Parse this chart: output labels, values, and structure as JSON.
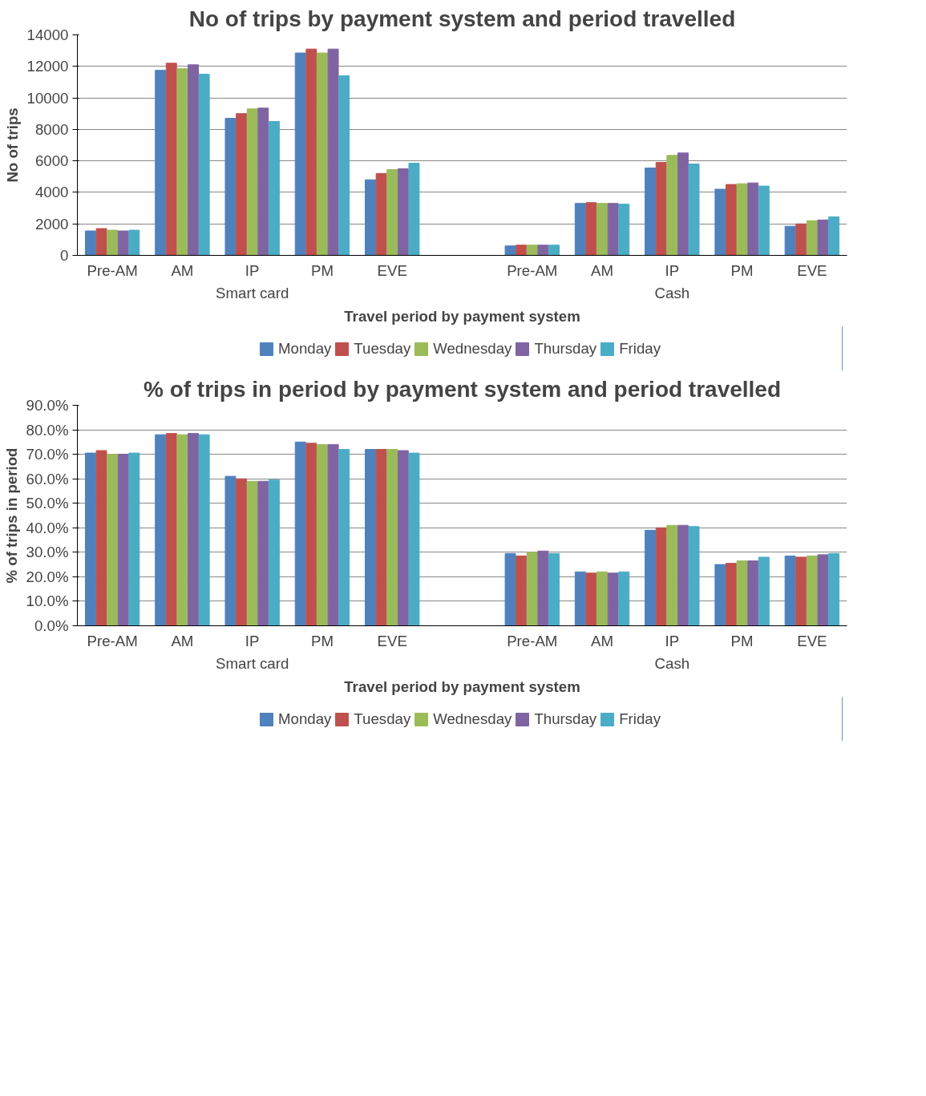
{
  "chart_data": [
    {
      "type": "bar",
      "title": "No of trips by payment system and period travelled",
      "xlabel": "Travel period by payment system",
      "ylabel": "No of trips",
      "categories": [
        "Pre-AM",
        "AM",
        "IP",
        "PM",
        "EVE",
        null,
        "Pre-AM",
        "AM",
        "IP",
        "PM",
        "EVE"
      ],
      "annotations": [
        "Smart card",
        "Cash"
      ],
      "series": [
        {
          "name": "Monday",
          "color": "#4f81bd",
          "values": [
            1550,
            11750,
            8700,
            12850,
            4800,
            null,
            600,
            3300,
            5550,
            4200,
            1850
          ]
        },
        {
          "name": "Tuesday",
          "color": "#c0504d",
          "values": [
            1700,
            12200,
            9000,
            13100,
            5200,
            null,
            650,
            3350,
            5900,
            4500,
            2000
          ]
        },
        {
          "name": "Wednesday",
          "color": "#9bbb59",
          "values": [
            1600,
            11850,
            9300,
            12850,
            5450,
            null,
            650,
            3300,
            6350,
            4550,
            2200
          ]
        },
        {
          "name": "Thursday",
          "color": "#8064a2",
          "values": [
            1550,
            12100,
            9350,
            13100,
            5500,
            null,
            650,
            3300,
            6500,
            4600,
            2250
          ]
        },
        {
          "name": "Friday",
          "color": "#4bacc6",
          "values": [
            1600,
            11500,
            8500,
            11400,
            5850,
            null,
            650,
            3250,
            5800,
            4400,
            2450
          ]
        }
      ],
      "ylim": [
        0,
        14000
      ],
      "yticks": [
        0,
        2000,
        4000,
        6000,
        8000,
        10000,
        12000,
        14000
      ],
      "grid": "y",
      "legend": "bottom"
    },
    {
      "type": "bar",
      "title": "% of trips in period by payment system and period travelled",
      "xlabel": "Travel period by payment system",
      "ylabel": "% of trips in period",
      "categories": [
        "Pre-AM",
        "AM",
        "IP",
        "PM",
        "EVE",
        null,
        "Pre-AM",
        "AM",
        "IP",
        "PM",
        "EVE"
      ],
      "annotations": [
        "Smart card",
        "Cash"
      ],
      "series": [
        {
          "name": "Monday",
          "color": "#4f81bd",
          "values": [
            70.5,
            78,
            61,
            75,
            72,
            null,
            29.5,
            22,
            39,
            25,
            28.5
          ]
        },
        {
          "name": "Tuesday",
          "color": "#c0504d",
          "values": [
            71.5,
            78.5,
            60,
            74.5,
            72,
            null,
            28.5,
            21.5,
            40,
            25.5,
            28
          ]
        },
        {
          "name": "Wednesday",
          "color": "#9bbb59",
          "values": [
            70,
            78,
            59,
            74,
            72,
            null,
            30,
            22,
            41,
            26.5,
            28.5
          ]
        },
        {
          "name": "Thursday",
          "color": "#8064a2",
          "values": [
            70,
            78.5,
            59,
            74,
            71.5,
            null,
            30.5,
            21.5,
            41,
            26.5,
            29
          ]
        },
        {
          "name": "Friday",
          "color": "#4bacc6",
          "values": [
            70.5,
            78,
            59.5,
            72,
            70.5,
            null,
            29.5,
            22,
            40.5,
            28,
            29.5
          ]
        }
      ],
      "ylim": [
        0,
        90
      ],
      "yticks": [
        {
          "value": 0,
          "label": "0.0%"
        },
        {
          "value": 10,
          "label": "10.0%"
        },
        {
          "value": 20,
          "label": "20.0%"
        },
        {
          "value": 30,
          "label": "30.0%"
        },
        {
          "value": 40,
          "label": "40.0%"
        },
        {
          "value": 50,
          "label": "50.0%"
        },
        {
          "value": 60,
          "label": "60.0%"
        },
        {
          "value": 70,
          "label": "70.0%"
        },
        {
          "value": 80,
          "label": "80.0%"
        },
        {
          "value": 90,
          "label": "90.0%"
        }
      ],
      "grid": "y",
      "legend": "bottom"
    }
  ]
}
